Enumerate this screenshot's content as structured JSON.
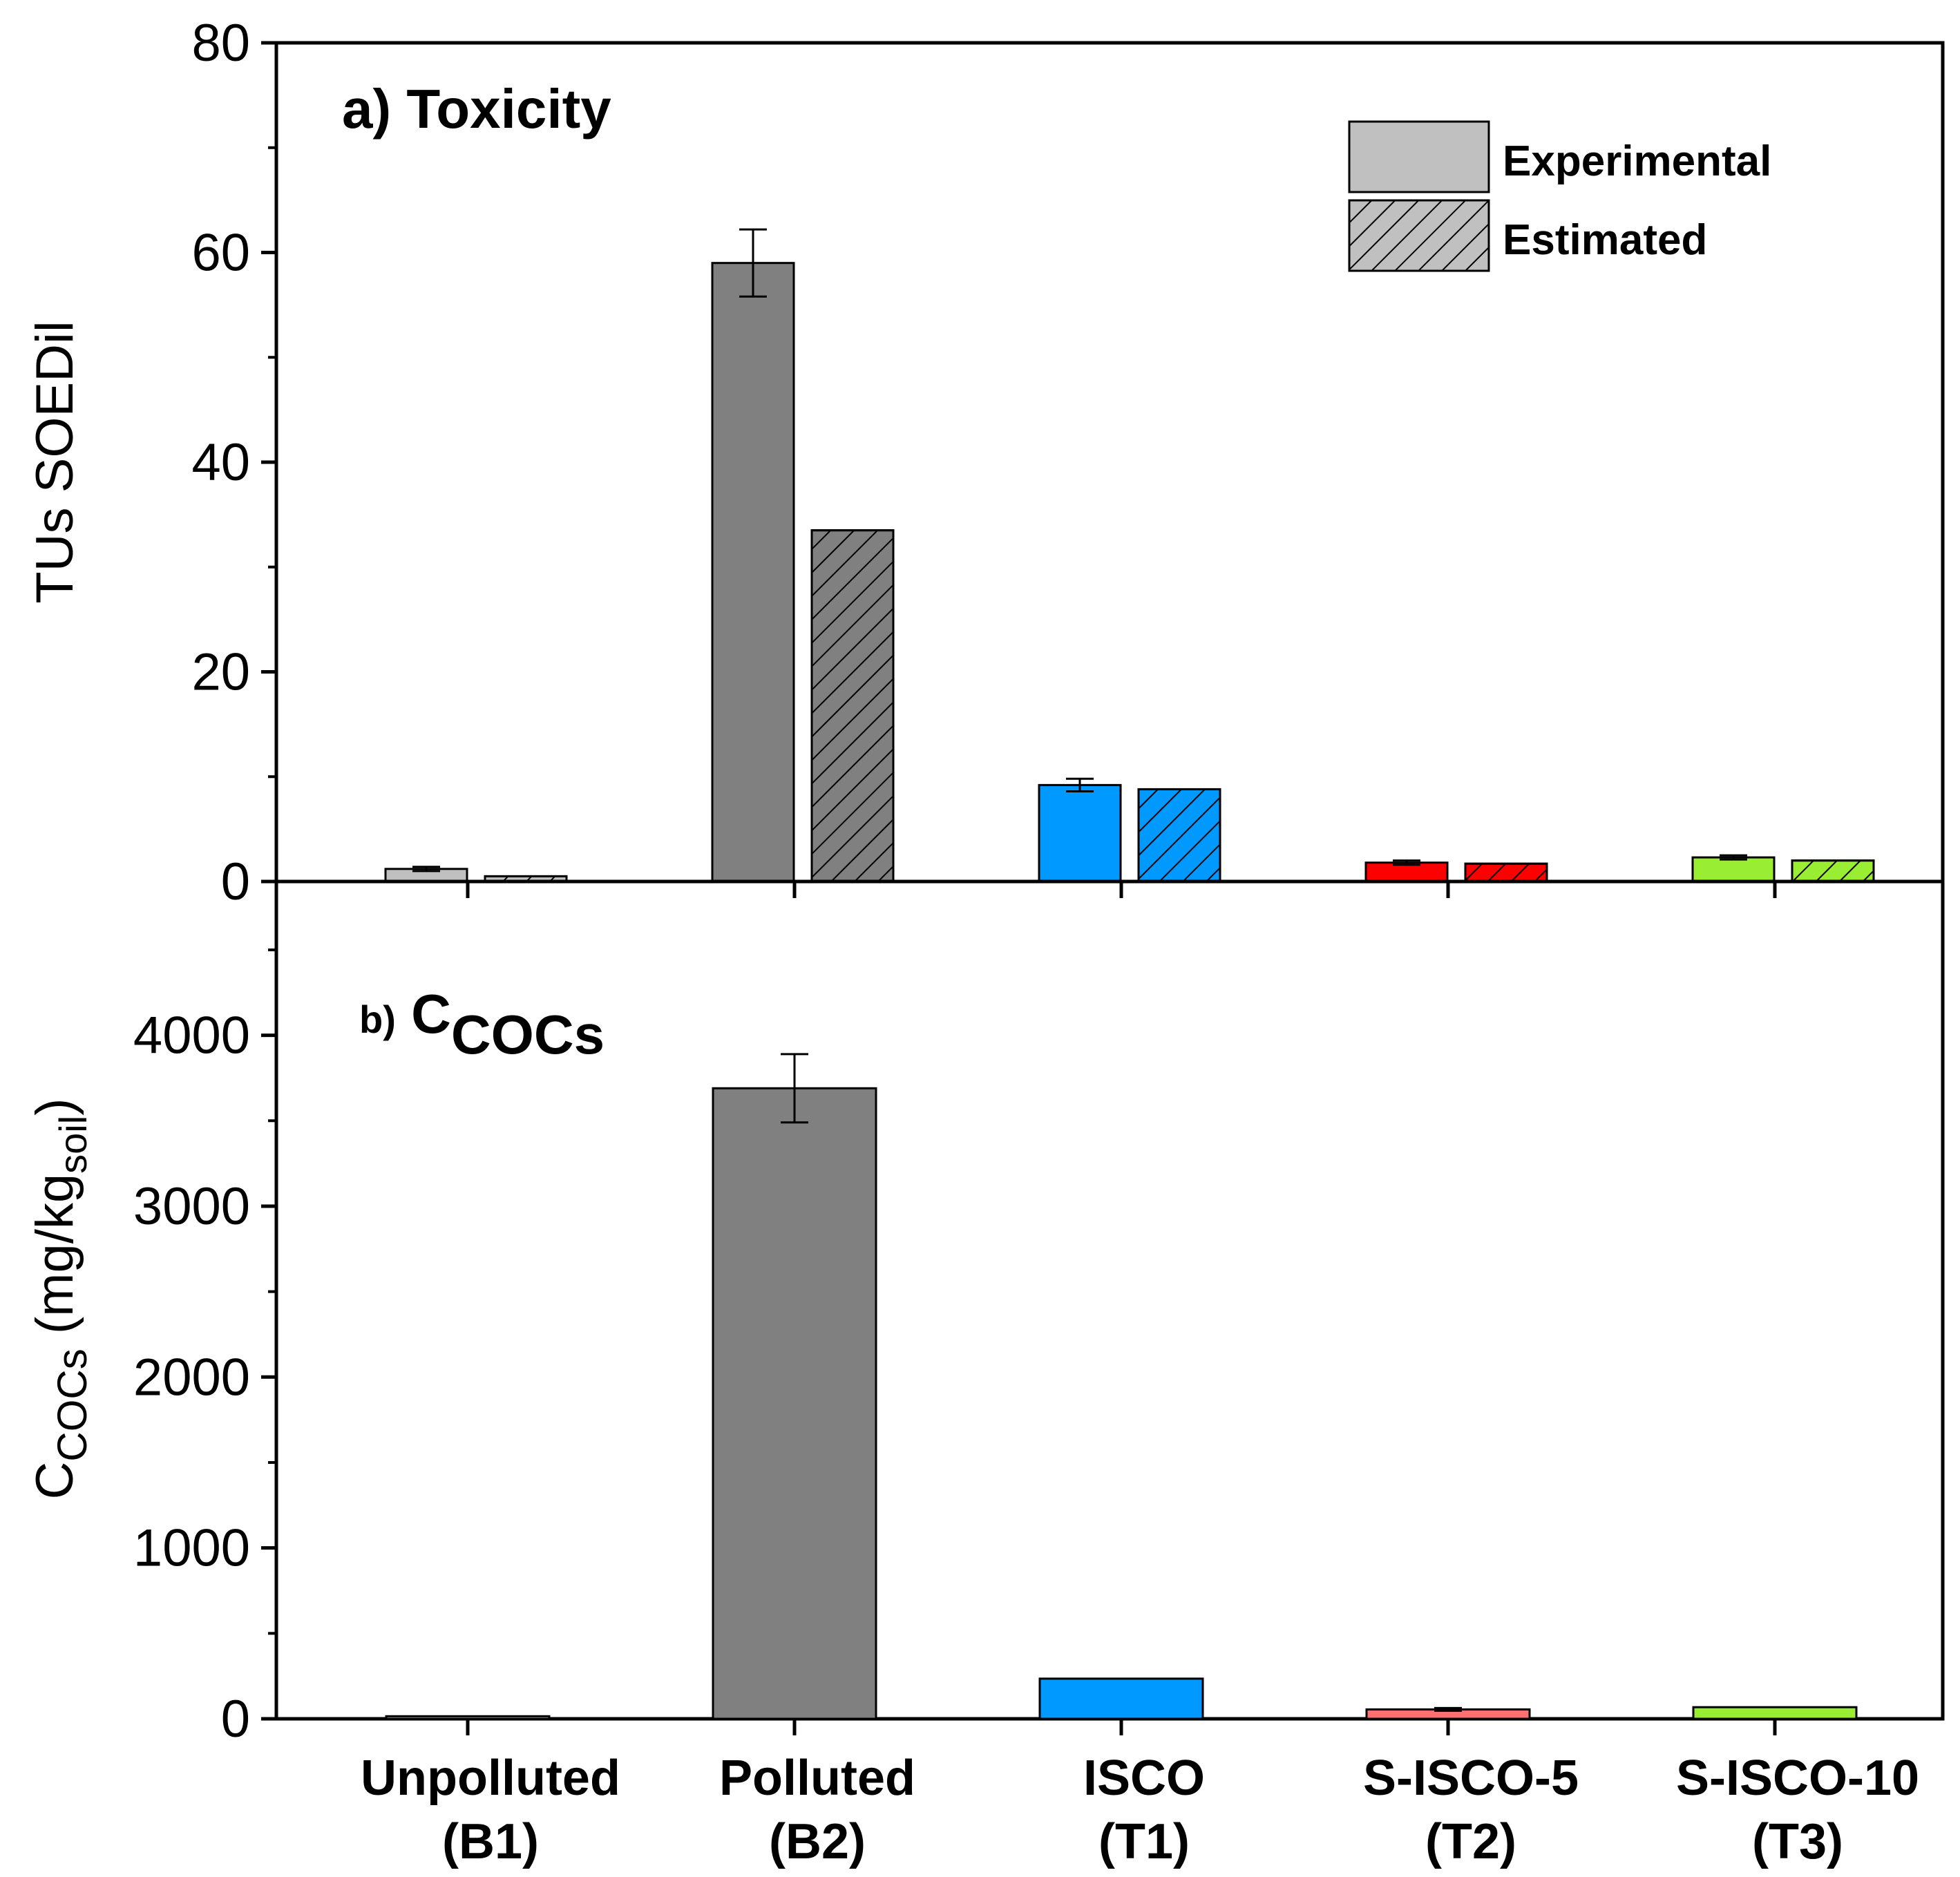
{
  "chart_data": [
    {
      "type": "bar",
      "panel": "a",
      "title_prefix": "a)",
      "title": "Toxicity",
      "ylabel": "TUs SOEDil",
      "ylim": [
        0,
        80
      ],
      "yticks": [
        0,
        20,
        40,
        60,
        80
      ],
      "legend": {
        "position": "top-right",
        "entries": [
          {
            "label": "Experimental",
            "style": "solid",
            "color": "#c0c0c0"
          },
          {
            "label": "Estimated",
            "style": "hatched",
            "color": "#c0c0c0"
          }
        ]
      },
      "series": [
        {
          "name": "Experimental",
          "style": "solid",
          "values": [
            1.2,
            59,
            9.2,
            1.8,
            2.3
          ],
          "errors": [
            0.2,
            3.2,
            0.6,
            0.2,
            0.2
          ]
        },
        {
          "name": "Estimated",
          "style": "hatched",
          "values": [
            0.5,
            33.5,
            8.8,
            1.7,
            2.0
          ],
          "errors": [
            0,
            0,
            0,
            0,
            0
          ]
        }
      ]
    },
    {
      "type": "bar",
      "panel": "b",
      "title_prefix": "b)",
      "title": "C",
      "title_sub": "COCs",
      "ylabel": "C",
      "ylabel_sub": "COCs",
      "ylabel_unit": " (mg/kg",
      "ylabel_unit_sub": "soil",
      "ylabel_close": ")",
      "ylim": [
        0,
        4900
      ],
      "yticks": [
        0,
        1000,
        2000,
        3000,
        4000
      ],
      "series": [
        {
          "name": "Experimental",
          "style": "solid",
          "values": [
            15,
            3690,
            235,
            55,
            68
          ],
          "errors": [
            0,
            200,
            0,
            8,
            0
          ]
        }
      ]
    }
  ],
  "categories": [
    {
      "line1": "Unpolluted",
      "line2": "(B1)",
      "color": "#c0c0c0"
    },
    {
      "line1": "Polluted",
      "line2": "(B2)",
      "color": "#808080"
    },
    {
      "line1": "ISCO",
      "line2": "(T1)",
      "color": "#0099ff"
    },
    {
      "line1": "S-ISCO-5",
      "line2": "(T2)",
      "color": "#ff0000"
    },
    {
      "line1": "S-ISCO-10",
      "line2": "(T3)",
      "color": "#99ee33"
    }
  ],
  "panel_b_colors": [
    "#c0c0c0",
    "#808080",
    "#0099ff",
    "#ff7070",
    "#99ee33"
  ]
}
